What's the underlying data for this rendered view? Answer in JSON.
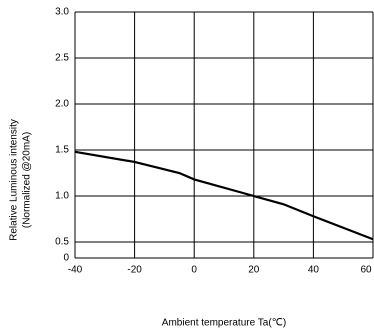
{
  "chart_data": {
    "type": "line",
    "y_label": [
      "Relative Luminous intensity",
      "(Normalized @20mA)"
    ],
    "x_label": "Ambient temperature Ta(℃)",
    "x": [
      -40,
      -20,
      -5,
      0,
      20,
      30,
      40,
      60
    ],
    "series": [
      {
        "name": "Relative luminous intensity",
        "color": "#000000",
        "values": [
          1.48,
          1.37,
          1.25,
          1.18,
          1.0,
          0.91,
          0.78,
          0.53
        ]
      }
    ],
    "xlim": [
      -40,
      60
    ],
    "xticks": [
      -40,
      -20,
      0,
      20,
      40,
      60
    ],
    "ylim": [
      0,
      3.0
    ],
    "yticks": [
      0,
      {
        "value": 0.5,
        "label": "0.5"
      },
      {
        "value": 1.0,
        "label": "1.0"
      },
      {
        "value": 1.5,
        "label": "1.5"
      },
      {
        "value": 2.0,
        "label": "2.0"
      },
      {
        "value": 2.5,
        "label": "2.5"
      },
      {
        "value": 3.0,
        "label": "3.0"
      }
    ],
    "grid": true
  }
}
